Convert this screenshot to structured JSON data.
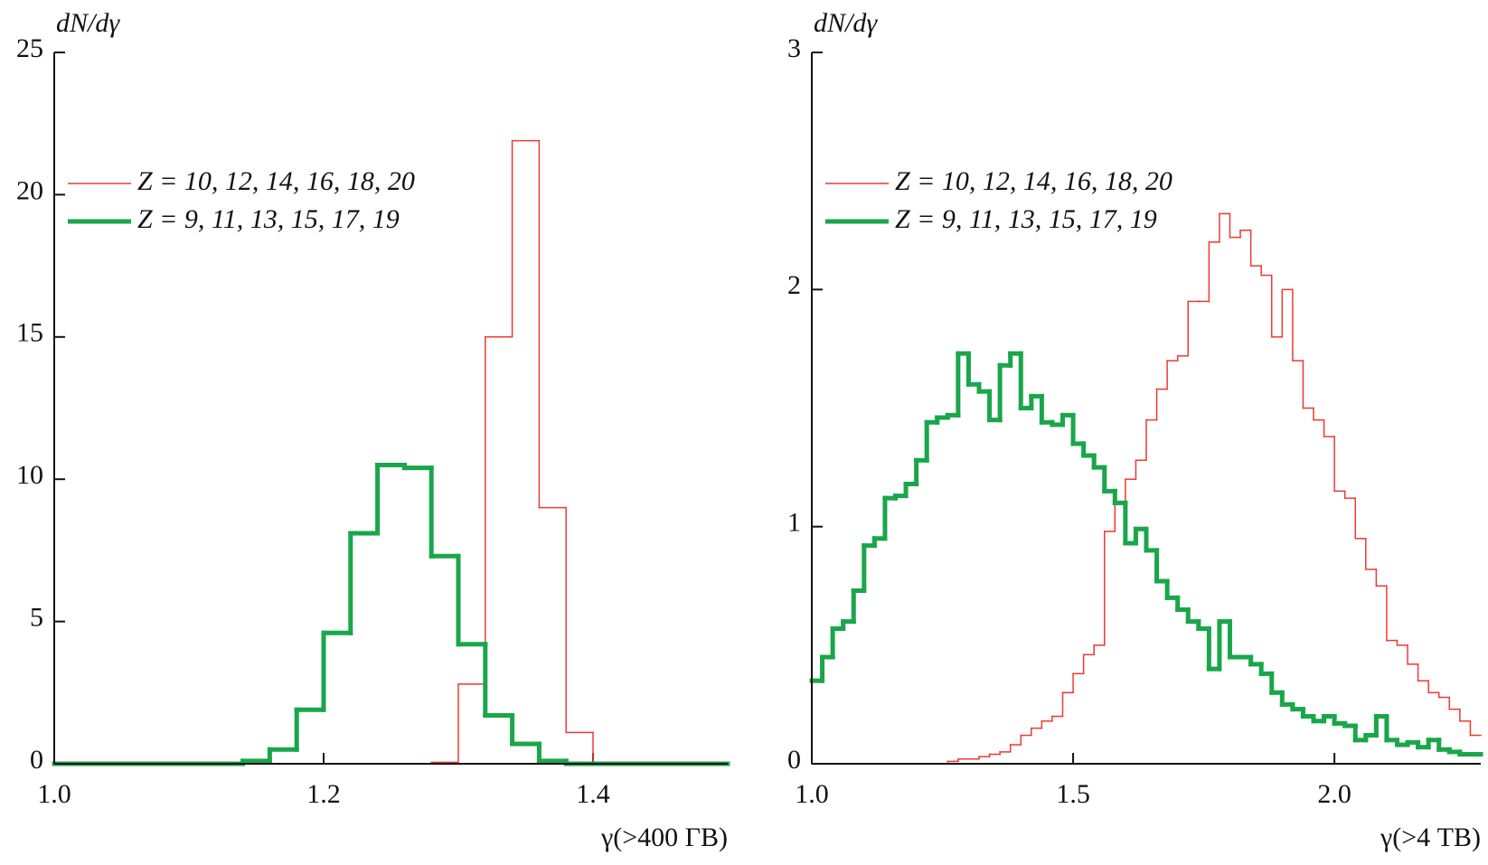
{
  "chart_data": [
    {
      "type": "histogram",
      "y_label": "dN/dγ",
      "x_label": "γ(>400 ГВ)",
      "legend": "upper left",
      "xlim": [
        1.0,
        1.5
      ],
      "ylim": [
        0,
        25
      ],
      "xticks": [
        {
          "value": 1.0,
          "label": "1.0"
        },
        1.2,
        1.4
      ],
      "yticks": [
        0,
        5,
        10,
        15,
        20,
        25
      ],
      "bins": [
        1.0,
        1.02,
        1.04,
        1.06,
        1.08,
        1.1,
        1.12,
        1.14,
        1.16,
        1.18,
        1.2,
        1.22,
        1.24,
        1.26,
        1.28,
        1.3,
        1.32,
        1.34,
        1.36,
        1.38,
        1.4,
        1.42,
        1.44,
        1.46,
        1.48,
        1.5
      ],
      "series": [
        {
          "name": "Z = 10, 12, 14, 16, 18, 20",
          "color": "#ee3a33",
          "width": 1.5,
          "values": [
            0,
            0,
            0,
            0,
            0,
            0,
            0,
            0,
            0,
            0,
            0,
            0,
            0,
            0,
            0.05,
            2.8,
            15.0,
            21.9,
            9.0,
            1.1,
            0,
            0,
            0,
            0,
            0
          ]
        },
        {
          "name": "Z = 9, 11, 13, 15, 17, 19",
          "color": "#1aa64a",
          "width": 5,
          "values": [
            0,
            0,
            0,
            0,
            0,
            0,
            0,
            0.1,
            0.5,
            1.9,
            4.6,
            8.1,
            10.5,
            10.4,
            7.3,
            4.2,
            1.7,
            0.7,
            0.1,
            0,
            0,
            0,
            0,
            0,
            0
          ]
        }
      ]
    },
    {
      "type": "histogram",
      "y_label": "dN/dγ",
      "x_label": "γ(>4 ТВ)",
      "legend": "upper left",
      "xlim": [
        1.0,
        2.28
      ],
      "ylim": [
        0,
        3
      ],
      "xticks": [
        {
          "value": 1.0,
          "label": "1.0"
        },
        1.5,
        {
          "value": 2.0,
          "label": "2.0"
        }
      ],
      "yticks": [
        0,
        1,
        2,
        3
      ],
      "bins": [
        1.0,
        1.02,
        1.04,
        1.06,
        1.08,
        1.1,
        1.12,
        1.14,
        1.16,
        1.18,
        1.2,
        1.22,
        1.24,
        1.26,
        1.28,
        1.3,
        1.32,
        1.34,
        1.36,
        1.38,
        1.4,
        1.42,
        1.44,
        1.46,
        1.48,
        1.5,
        1.52,
        1.54,
        1.56,
        1.58,
        1.6,
        1.62,
        1.64,
        1.66,
        1.68,
        1.7,
        1.72,
        1.74,
        1.76,
        1.78,
        1.8,
        1.82,
        1.84,
        1.86,
        1.88,
        1.9,
        1.92,
        1.94,
        1.96,
        1.98,
        2.0,
        2.02,
        2.04,
        2.06,
        2.08,
        2.1,
        2.12,
        2.14,
        2.16,
        2.18,
        2.2,
        2.22,
        2.24,
        2.26,
        2.28
      ],
      "series": [
        {
          "name": "Z = 10, 12, 14, 16, 18, 20",
          "color": "#ee3a33",
          "width": 1.5,
          "values": [
            0,
            0,
            0,
            0,
            0,
            0,
            0,
            0,
            0,
            0,
            0,
            0,
            0,
            0.01,
            0.02,
            0.02,
            0.03,
            0.04,
            0.05,
            0.08,
            0.12,
            0.15,
            0.18,
            0.2,
            0.3,
            0.38,
            0.46,
            0.5,
            0.98,
            1.1,
            1.2,
            1.28,
            1.45,
            1.58,
            1.7,
            1.72,
            1.95,
            1.95,
            2.2,
            2.32,
            2.22,
            2.25,
            2.1,
            2.06,
            1.8,
            2.0,
            1.7,
            1.5,
            1.45,
            1.38,
            1.15,
            1.12,
            0.95,
            0.82,
            0.75,
            0.52,
            0.5,
            0.42,
            0.35,
            0.3,
            0.28,
            0.23,
            0.18,
            0.12
          ]
        },
        {
          "name": "Z = 9, 11, 13, 15, 17, 19",
          "color": "#1aa64a",
          "width": 5,
          "values": [
            0.35,
            0.45,
            0.57,
            0.6,
            0.73,
            0.92,
            0.95,
            1.12,
            1.13,
            1.18,
            1.28,
            1.44,
            1.46,
            1.47,
            1.73,
            1.6,
            1.57,
            1.45,
            1.68,
            1.73,
            1.5,
            1.55,
            1.44,
            1.43,
            1.47,
            1.35,
            1.3,
            1.25,
            1.15,
            1.1,
            0.93,
            0.99,
            0.9,
            0.77,
            0.7,
            0.65,
            0.6,
            0.57,
            0.4,
            0.6,
            0.45,
            0.45,
            0.42,
            0.38,
            0.3,
            0.25,
            0.23,
            0.2,
            0.18,
            0.2,
            0.17,
            0.16,
            0.1,
            0.12,
            0.2,
            0.1,
            0.08,
            0.09,
            0.07,
            0.1,
            0.06,
            0.05,
            0.04,
            0.04
          ]
        }
      ]
    }
  ]
}
